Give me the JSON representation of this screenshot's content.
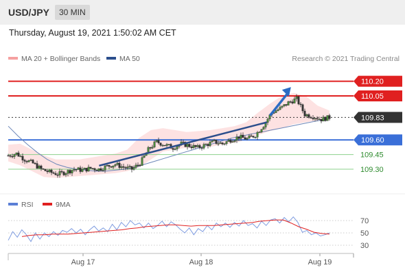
{
  "header": {
    "symbol": "USD/JPY",
    "timeframe": "30 MIN"
  },
  "timestamp": "Thursday, August 19, 2021 1:50:02 AM CET",
  "legend": {
    "ma20": {
      "label": "MA 20 + Bollinger Bands",
      "color": "#f08a8a"
    },
    "ma50": {
      "label": "MA 50",
      "color": "#2b4e8c"
    }
  },
  "credit": "Research © 2021 Trading Central",
  "rsi_legend": {
    "rsi": {
      "label": "RSI",
      "color": "#5b7fd6"
    },
    "ma9": {
      "label": "9MA",
      "color": "#e02020"
    }
  },
  "chart_data": [
    {
      "type": "line",
      "title": "USD/JPY",
      "timeframe": "30 MIN",
      "x_ticks": [
        "Aug 17",
        "Aug 18",
        "Aug 19"
      ],
      "ylim": [
        109.07,
        110.27
      ],
      "levels": [
        {
          "value": 110.2,
          "label": "110.20",
          "role": "resistance",
          "color": "#e02020"
        },
        {
          "value": 110.05,
          "label": "110.05",
          "role": "resistance",
          "color": "#e02020"
        },
        {
          "value": 109.83,
          "label": "109.83",
          "role": "last price",
          "color": "#333333"
        },
        {
          "value": 109.6,
          "label": "109.60",
          "role": "pivot",
          "color": "#3a6fd8"
        },
        {
          "value": 109.45,
          "label": "109.45",
          "role": "support",
          "color": "#8bd08b"
        },
        {
          "value": 109.3,
          "label": "109.30",
          "role": "support",
          "color": "#8bd08b"
        }
      ],
      "price_series": [
        109.44,
        109.46,
        109.4,
        109.36,
        109.3,
        109.27,
        109.25,
        109.27,
        109.3,
        109.29,
        109.31,
        109.3,
        109.33,
        109.35,
        109.32,
        109.3,
        109.36,
        109.5,
        109.58,
        109.55,
        109.52,
        109.56,
        109.54,
        109.52,
        109.55,
        109.58,
        109.56,
        109.6,
        109.63,
        109.61,
        109.65,
        109.75,
        109.88,
        109.92,
        109.98,
        110.02,
        109.86,
        109.84,
        109.81,
        109.83
      ],
      "ma50_series": [
        109.74,
        109.64,
        109.55,
        109.47,
        109.4,
        109.35,
        109.32,
        109.3,
        109.29,
        109.28,
        109.28,
        109.29,
        109.3,
        109.32,
        109.35,
        109.38,
        109.41,
        109.44,
        109.47,
        109.5,
        109.53,
        109.56,
        109.59,
        109.62,
        109.64,
        109.66,
        109.68,
        109.7,
        109.72,
        109.74,
        109.76,
        109.78,
        109.8,
        109.82
      ],
      "bollinger_upper": [
        109.55,
        109.56,
        109.5,
        109.44,
        109.4,
        109.4,
        109.4,
        109.42,
        109.44,
        109.46,
        109.5,
        109.62,
        109.7,
        109.72,
        109.7,
        109.68,
        109.69,
        109.7,
        109.72,
        109.74,
        109.78,
        109.88,
        109.97,
        110.05,
        110.08,
        110.05,
        109.95,
        109.9
      ],
      "bollinger_lower": [
        109.38,
        109.34,
        109.28,
        109.22,
        109.21,
        109.22,
        109.23,
        109.24,
        109.25,
        109.26,
        109.28,
        109.32,
        109.4,
        109.48,
        109.5,
        109.52,
        109.52,
        109.53,
        109.55,
        109.57,
        109.6,
        109.65,
        109.69,
        109.72,
        109.76,
        109.78,
        109.8,
        109.8
      ],
      "trendline": [
        [
          0.3,
          109.35
        ],
        [
          0.805,
          109.78
        ]
      ],
      "arrow": [
        [
          0.815,
          109.85
        ],
        [
          0.88,
          110.14
        ]
      ]
    },
    {
      "type": "line",
      "title": "RSI",
      "series": [
        {
          "name": "RSI",
          "color": "#5b7fd6"
        },
        {
          "name": "9MA",
          "color": "#e02020"
        }
      ],
      "y_ticks": [
        70,
        50,
        30
      ],
      "ylim": [
        20,
        80
      ],
      "rsi_values": [
        38,
        52,
        43,
        55,
        47,
        36,
        50,
        40,
        50,
        44,
        52,
        46,
        54,
        51,
        57,
        50,
        56,
        47,
        55,
        61,
        53,
        58,
        52,
        64,
        55,
        67,
        60,
        70,
        63,
        66,
        58,
        66,
        57,
        62,
        69,
        60,
        68,
        63,
        56,
        50,
        58,
        47,
        57,
        52,
        62,
        55,
        66,
        60,
        66,
        59,
        67,
        61,
        70,
        62,
        65,
        58,
        69,
        62,
        71,
        73,
        66,
        75,
        68,
        76,
        67,
        51,
        54,
        47,
        50,
        45,
        47,
        50
      ],
      "ma9_values": [
        44,
        46,
        47,
        47,
        48,
        48,
        48,
        49,
        50,
        51,
        52,
        53,
        54,
        55,
        57,
        58,
        60,
        61,
        62,
        63,
        63,
        62,
        61,
        62,
        62,
        62,
        63,
        64,
        65,
        66,
        67,
        69,
        70,
        71,
        71,
        66,
        60,
        56,
        51,
        49,
        48
      ]
    }
  ]
}
